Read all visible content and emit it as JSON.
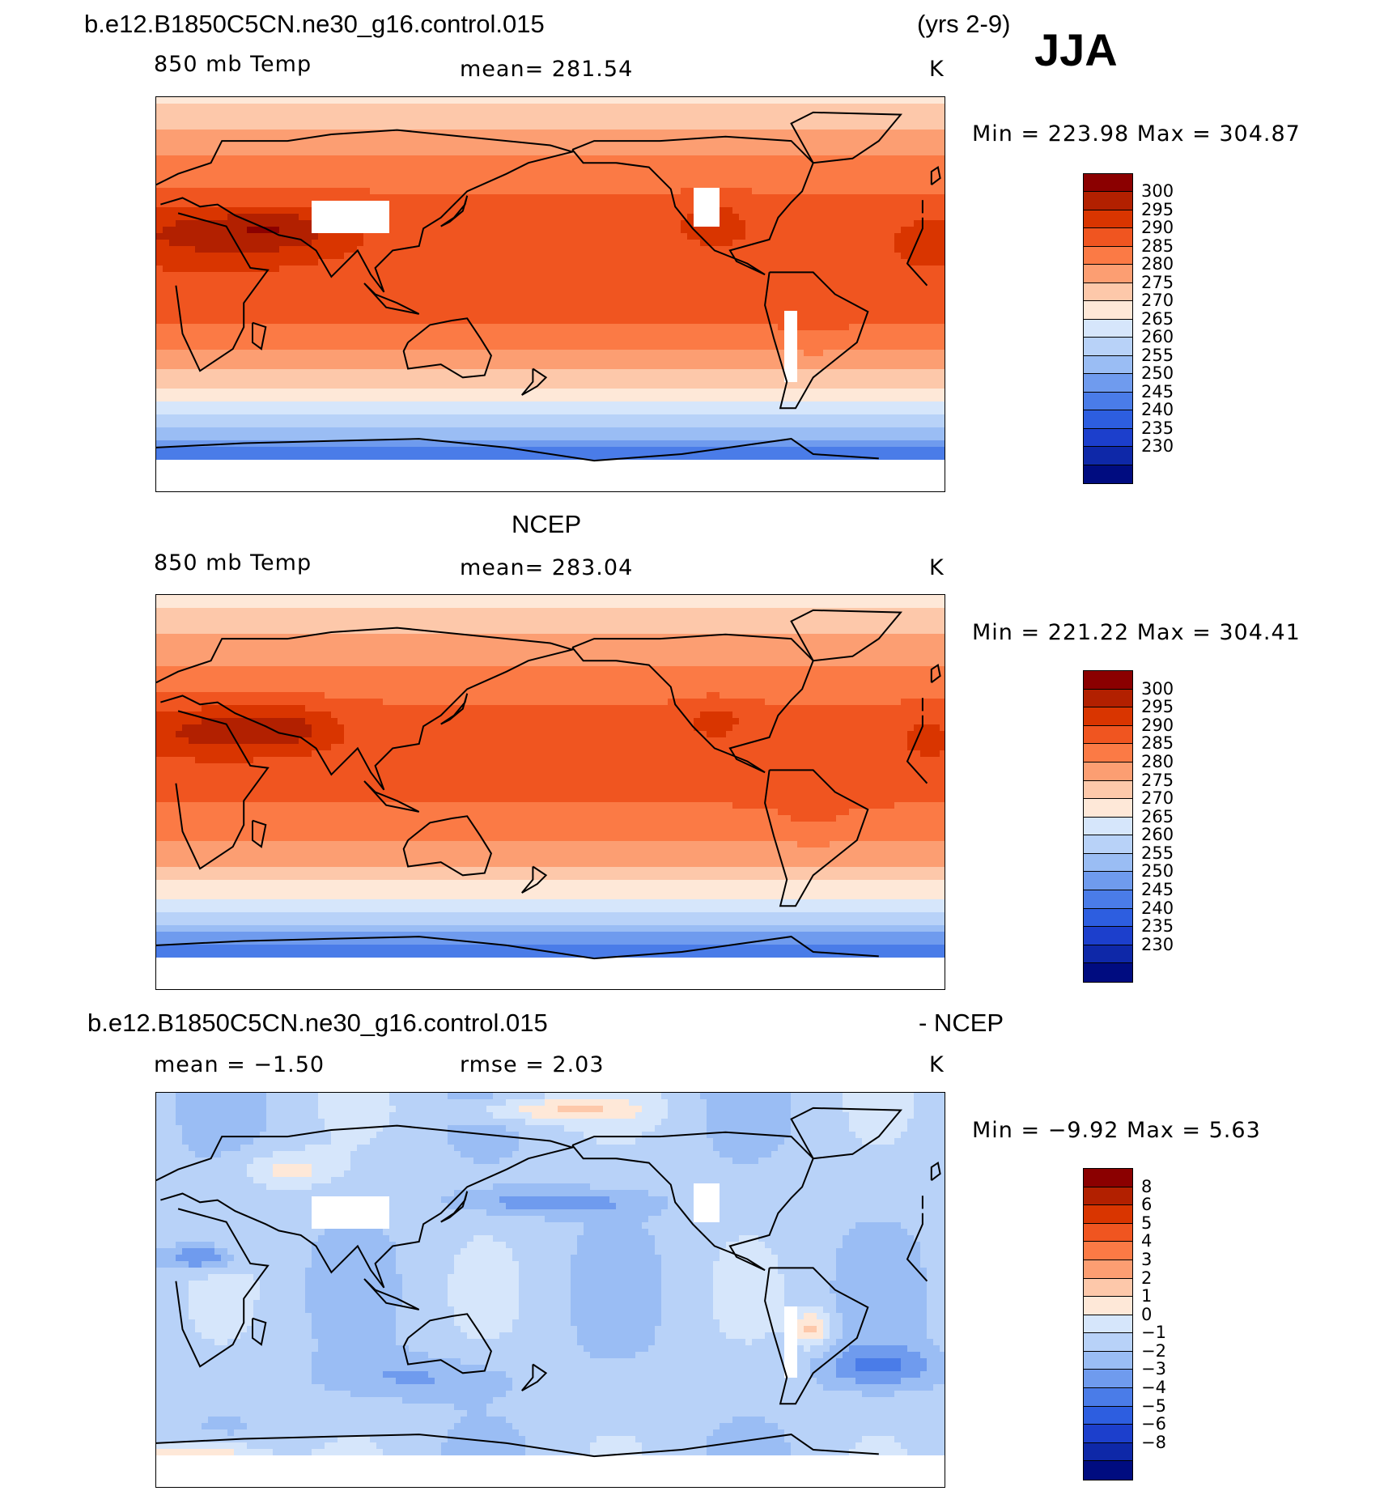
{
  "header": {
    "case_name": "b.e12.B1850C5CN.ne30_g16.control.015",
    "years": "(yrs 2-9)",
    "season": "JJA",
    "ncep_title": "NCEP",
    "diff_title_case": "b.e12.B1850C5CN.ne30_g16.control.015",
    "diff_title_suffix": "- NCEP"
  },
  "colors": {
    "temp_scale": [
      "#8b0000",
      "#b22000",
      "#d93500",
      "#f05520",
      "#fb7a45",
      "#fc9e72",
      "#fdc8aa",
      "#fee8d8",
      "#d6e6fb",
      "#b8d2f8",
      "#9abdf4",
      "#6f9bee",
      "#4a7ce8",
      "#2d5ee0",
      "#1c3fcc",
      "#0e28a8",
      "#000c80"
    ],
    "diff_scale": [
      "#8b0000",
      "#b22000",
      "#d93500",
      "#f05520",
      "#fb7a45",
      "#fc9e72",
      "#fdc8aa",
      "#fee8d8",
      "#d6e6fb",
      "#b8d2f8",
      "#9abdf4",
      "#6f9bee",
      "#4a7ce8",
      "#2d5ee0",
      "#1c3fcc",
      "#0e28a8",
      "#000c80"
    ]
  },
  "chart_data": [
    {
      "type": "heatmap",
      "panel": "model",
      "variable_label": "850 mb Temp",
      "mean_label": "mean= 281.54",
      "units": "K",
      "minmax_label": "Min = 223.98 Max = 304.87",
      "min": 223.98,
      "max": 304.87,
      "mean": 281.54,
      "colorbar_levels": [
        "300",
        "295",
        "290",
        "285",
        "280",
        "275",
        "270",
        "265",
        "260",
        "255",
        "250",
        "245",
        "240",
        "235",
        "230"
      ],
      "field": "temperature",
      "offset": 0,
      "missing_topo": true
    },
    {
      "type": "heatmap",
      "panel": "ncep",
      "variable_label": "850 mb Temp",
      "mean_label": "mean= 283.04",
      "units": "K",
      "minmax_label": "Min = 221.22 Max = 304.41",
      "min": 221.22,
      "max": 304.41,
      "mean": 283.04,
      "colorbar_levels": [
        "300",
        "295",
        "290",
        "285",
        "280",
        "275",
        "270",
        "265",
        "260",
        "255",
        "250",
        "245",
        "240",
        "235",
        "230"
      ],
      "field": "temperature",
      "offset": 1.5,
      "missing_topo": false
    },
    {
      "type": "heatmap",
      "panel": "difference",
      "mean_label": "mean =   −1.50",
      "rmse_label": "rmse =    2.03",
      "units": "K",
      "minmax_label": "Min =   −9.92 Max =    5.63",
      "min": -9.92,
      "max": 5.63,
      "mean": -1.5,
      "rmse": 2.03,
      "colorbar_levels": [
        "8",
        "6",
        "5",
        "4",
        "3",
        "2",
        "1",
        "0",
        "−1",
        "−2",
        "−3",
        "−4",
        "−5",
        "−6",
        "−8"
      ],
      "field": "difference",
      "missing_topo": true
    }
  ]
}
